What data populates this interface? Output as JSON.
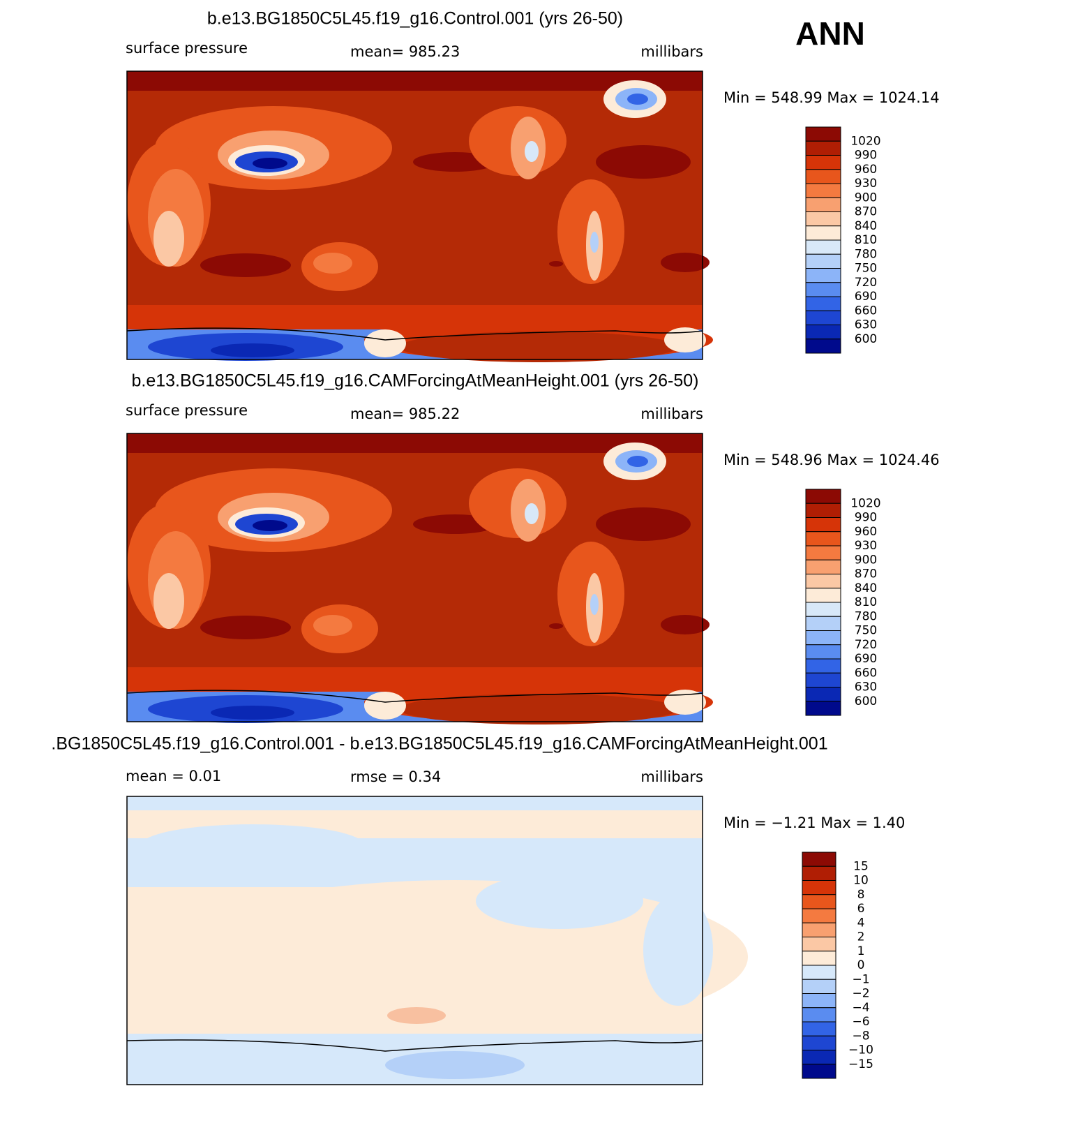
{
  "corner_label": "ANN",
  "panels": [
    {
      "title": "b.e13.BG1850C5L45.f19_g16.Control.001 (yrs 26-50)",
      "left_label": "surface pressure",
      "center_label": "mean= 985.23",
      "right_label": "millibars",
      "min_max": "Min = 548.99 Max = 1024.14",
      "colorbar": {
        "colors": [
          "#8c0a04",
          "#b01e04",
          "#d63408",
          "#e8561c",
          "#f47a40",
          "#f8a070",
          "#fbc8a5",
          "#fdebd8",
          "#d8e8f8",
          "#b4d0f8",
          "#8cb4f8",
          "#5a8cf0",
          "#3264e6",
          "#1e46d2",
          "#0a28b4",
          "#000a8c"
        ],
        "labels": [
          "1020",
          "990",
          "960",
          "930",
          "900",
          "870",
          "840",
          "810",
          "780",
          "750",
          "720",
          "690",
          "660",
          "630",
          "600"
        ]
      }
    },
    {
      "title": "b.e13.BG1850C5L45.f19_g16.CAMForcingAtMeanHeight.001 (yrs 26-50)",
      "left_label": "surface pressure",
      "center_label": "mean= 985.22",
      "right_label": "millibars",
      "min_max": "Min = 548.96 Max = 1024.46",
      "colorbar": {
        "colors": [
          "#8c0a04",
          "#b01e04",
          "#d63408",
          "#e8561c",
          "#f47a40",
          "#f8a070",
          "#fbc8a5",
          "#fdebd8",
          "#d8e8f8",
          "#b4d0f8",
          "#8cb4f8",
          "#5a8cf0",
          "#3264e6",
          "#1e46d2",
          "#0a28b4",
          "#000a8c"
        ],
        "labels": [
          "1020",
          "990",
          "960",
          "930",
          "900",
          "870",
          "840",
          "810",
          "780",
          "750",
          "720",
          "690",
          "660",
          "630",
          "600"
        ]
      }
    },
    {
      "title": ".BG1850C5L45.f19_g16.Control.001 - b.e13.BG1850C5L45.f19_g16.CAMForcingAtMeanHeight.001",
      "left_label": "mean =    0.01",
      "center_label": "rmse =    0.34",
      "right_label": "millibars",
      "min_max": "Min =  −1.21 Max =    1.40",
      "colorbar": {
        "colors": [
          "#8c0a04",
          "#b01e04",
          "#d63408",
          "#e8561c",
          "#f47a40",
          "#f8a070",
          "#fbc8a5",
          "#fdebd8",
          "#d6e8fa",
          "#b4d0f8",
          "#8cb4f8",
          "#5a8cf0",
          "#3264e6",
          "#1e46d2",
          "#0a28b4",
          "#000a8c"
        ],
        "labels": [
          "15",
          "10",
          "8",
          "6",
          "4",
          "2",
          "1",
          "0",
          "−1",
          "−2",
          "−4",
          "−6",
          "−8",
          "−10",
          "−15"
        ]
      }
    }
  ]
}
